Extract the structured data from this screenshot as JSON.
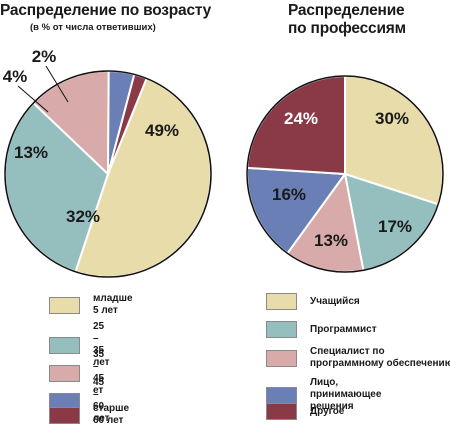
{
  "chart_data": [
    {
      "type": "pie",
      "title": "Распределение по возрасту",
      "subtitle": "(в % от числа ответивших)",
      "categories": [
        "младше 5 лет",
        "25 – 35 лет",
        "35 – 45 ет",
        "45 – 60 лет",
        "старше 60 лет"
      ],
      "values": [
        49,
        32,
        13,
        4,
        2
      ],
      "labels": [
        "49%",
        "32%",
        "13%",
        "4%",
        "2%"
      ],
      "colors": [
        "#e8dcaa",
        "#95bfbf",
        "#d8aaaa",
        "#6a7fb5",
        "#8a3a47"
      ],
      "legend_position": "bottom"
    },
    {
      "type": "pie",
      "title": "Распределение по профессиям",
      "categories": [
        "Учащийся",
        "Программист",
        "Специалист по программному обеспечению",
        "Лицо, принимающее решения",
        "Другое"
      ],
      "values": [
        30,
        17,
        13,
        16,
        24
      ],
      "labels": [
        "30%",
        "17%",
        "13%",
        "16%",
        "24%"
      ],
      "colors": [
        "#e8dcaa",
        "#95bfbf",
        "#d8aaaa",
        "#6a7fb5",
        "#8a3a47"
      ],
      "legend_position": "bottom"
    }
  ],
  "legend_age": [
    "младше   5 лет",
    "25 – 35 лет",
    "35 – 45   ет",
    "45 – 60 лет",
    "старше 60 лет"
  ],
  "legend_prof": [
    "Учащийся",
    "Программист",
    "Специалист по программному обеспечению",
    "Лицо, принимающее решения",
    "Другое"
  ],
  "title_line1_prof": "Распределение",
  "title_line2_prof": "по профессиям"
}
